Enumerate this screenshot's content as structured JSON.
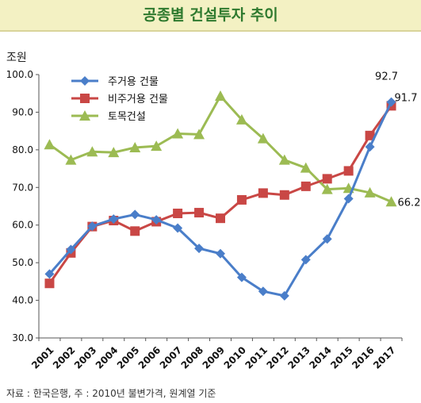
{
  "title": "공종별 건설투자 추이",
  "source": "자료 : 한국은행,  주 : 2010년 불변가격, 원계열 기준",
  "chart_data": {
    "type": "line",
    "unit_label": "조원",
    "ylim": [
      30,
      100
    ],
    "yticks": [
      "30.0",
      "40.0",
      "50.0",
      "60.0",
      "70.0",
      "80.0",
      "90.0",
      "100.0"
    ],
    "categories": [
      "2001",
      "2002",
      "2003",
      "2004",
      "2005",
      "2006",
      "2007",
      "2008",
      "2009",
      "2010",
      "2011",
      "2012",
      "2013",
      "2014",
      "2015",
      "2016",
      "2017"
    ],
    "series": [
      {
        "name": "주거용 건물",
        "color": "#4a7ec9",
        "marker": "diamond",
        "values": [
          47.0,
          53.5,
          59.7,
          61.6,
          62.8,
          61.4,
          59.2,
          53.8,
          52.4,
          46.1,
          42.4,
          41.2,
          50.8,
          56.3,
          67.0,
          80.8,
          92.7
        ],
        "end_label": "92.7"
      },
      {
        "name": "비주거용 건물",
        "color": "#c94745",
        "marker": "square",
        "values": [
          44.5,
          52.6,
          59.6,
          61.2,
          58.4,
          60.9,
          63.1,
          63.3,
          61.8,
          66.7,
          68.5,
          68.0,
          70.3,
          72.3,
          74.4,
          83.8,
          91.7
        ],
        "end_label": "91.7"
      },
      {
        "name": "토목건설",
        "color": "#9cbb53",
        "marker": "triangle",
        "values": [
          81.4,
          77.3,
          79.5,
          79.3,
          80.6,
          81.0,
          84.3,
          84.1,
          94.3,
          88.0,
          83.0,
          77.3,
          75.2,
          69.5,
          69.8,
          68.6,
          66.2
        ],
        "end_label": "66.2"
      }
    ]
  }
}
